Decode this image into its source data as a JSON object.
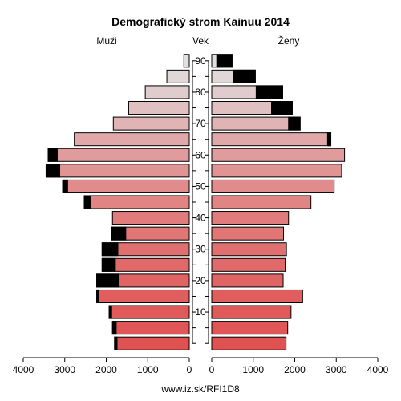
{
  "chart_data": {
    "type": "bar",
    "orientation": "horizontal",
    "subtype": "population-pyramid",
    "title": "Demografický strom Kainuu 2014",
    "left_label": "Muži",
    "center_label": "Vek",
    "right_label": "Ženy",
    "footer": "www.iz.sk/RFI1D8",
    "age_groups": [
      "0-4",
      "5-9",
      "10-14",
      "15-19",
      "20-24",
      "25-29",
      "30-34",
      "35-39",
      "40-44",
      "45-49",
      "50-54",
      "55-59",
      "60-64",
      "65-69",
      "70-74",
      "75-79",
      "80-84",
      "85-89",
      "90+"
    ],
    "age_tick_labels": [
      "10",
      "20",
      "30",
      "40",
      "50",
      "60",
      "70",
      "80",
      "90"
    ],
    "x_tick_labels": [
      "4000",
      "3000",
      "2000",
      "1000",
      "0",
      "0",
      "1000",
      "2000",
      "3000",
      "4000"
    ],
    "xlim": [
      0,
      4000
    ],
    "series": [
      {
        "name": "Muži",
        "values": [
          1800,
          1850,
          1930,
          2230,
          2230,
          2100,
          2100,
          1880,
          1850,
          2530,
          3050,
          3450,
          3400,
          2770,
          1830,
          1460,
          1060,
          540,
          130
        ],
        "excess": [
          60,
          90,
          60,
          50,
          540,
          320,
          380,
          350,
          0,
          160,
          120,
          330,
          220,
          0,
          0,
          0,
          0,
          0,
          0
        ]
      },
      {
        "name": "Ženy",
        "values": [
          1790,
          1830,
          1910,
          2190,
          1720,
          1770,
          1800,
          1730,
          1850,
          2390,
          2950,
          3130,
          3200,
          2870,
          2130,
          1940,
          1710,
          1050,
          490
        ],
        "excess": [
          0,
          0,
          0,
          0,
          0,
          0,
          0,
          0,
          0,
          0,
          0,
          0,
          0,
          80,
          280,
          500,
          640,
          520,
          370
        ]
      }
    ],
    "bar_colors": [
      "#e05252",
      "#e05656",
      "#e05a5a",
      "#e05e5e",
      "#e06464",
      "#e06a6a",
      "#e07070",
      "#e07676",
      "#e07c7c",
      "#e08484",
      "#e08c8c",
      "#e09494",
      "#e09c9c",
      "#e0a8a8",
      "#e0b4b4",
      "#e0c0c0",
      "#e0cccc",
      "#e0d8d8",
      "#e0e0e0"
    ],
    "grid": false
  }
}
